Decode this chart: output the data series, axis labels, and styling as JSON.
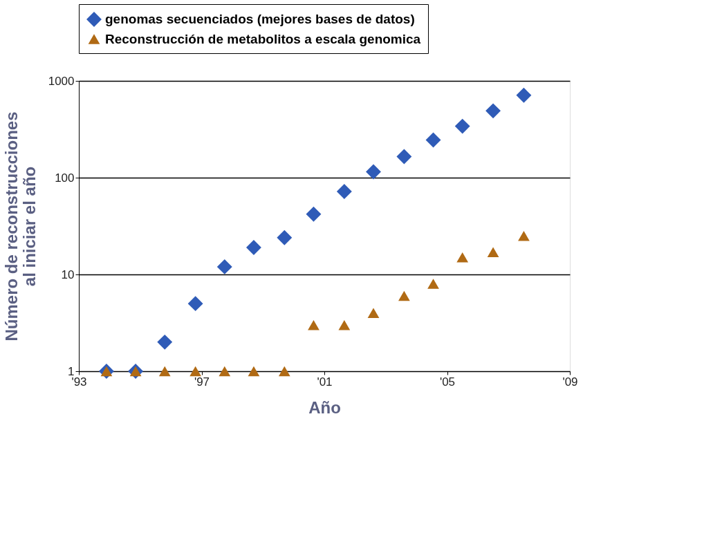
{
  "chart_data": {
    "type": "scatter",
    "xlabel": "Año",
    "ylabel": "Número de reconstrucciones\nal iniciar el año",
    "x": [
      1993.9,
      1994.85,
      1995.8,
      1996.8,
      1997.75,
      1998.7,
      1999.7,
      2000.65,
      2001.65,
      2002.6,
      2003.6,
      2004.55,
      2005.5,
      2006.5,
      2007.5
    ],
    "series": [
      {
        "name": "genomas secuenciados  (mejores bases de datos)",
        "color": "#2f5bb7",
        "marker": "diamond",
        "values": [
          1,
          1,
          2,
          5,
          12,
          19,
          24,
          42,
          72,
          115,
          165,
          245,
          340,
          490,
          710
        ]
      },
      {
        "name": "Reconstrucción de metabolitos a escala genomica",
        "color": "#b06a14",
        "marker": "triangle",
        "values": [
          1,
          1,
          1,
          1,
          1,
          1,
          1,
          3,
          3,
          4,
          6,
          8,
          15,
          17,
          25
        ]
      }
    ],
    "log": "y",
    "xlim": [
      1993,
      2009
    ],
    "xticks": [
      {
        "value": 1993,
        "label": "'93"
      },
      {
        "value": 1997,
        "label": "'97"
      },
      {
        "value": 2001,
        "label": "'01"
      },
      {
        "value": 2005,
        "label": "'05"
      },
      {
        "value": 2009,
        "label": "'09"
      }
    ],
    "ylim": [
      1,
      1000
    ],
    "yticks": [
      1,
      10,
      100,
      1000
    ],
    "grid": "y",
    "legend": "top"
  }
}
